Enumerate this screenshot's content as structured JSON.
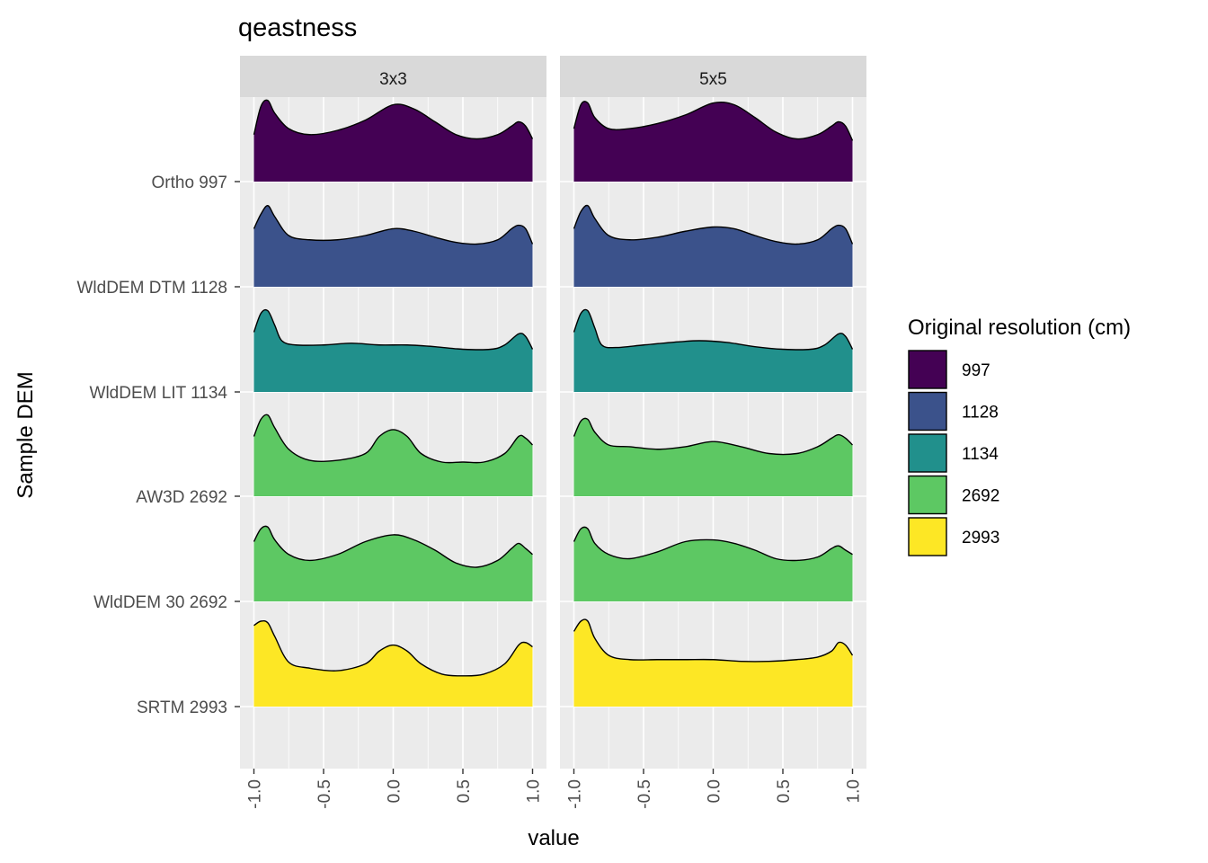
{
  "chart_data": {
    "type": "ridgeline-density",
    "title": "qeastness",
    "xlabel": "value",
    "ylabel": "Sample DEM",
    "xlim": [
      -1.1,
      1.1
    ],
    "x_ticks": [
      "-1.0",
      "-0.5",
      "0.0",
      "0.5",
      "1.0"
    ],
    "x_tick_values": [
      -1.0,
      -0.5,
      0.0,
      0.5,
      1.0
    ],
    "facets": [
      {
        "label": "3x3",
        "ridges": [
          {
            "category": "Ortho 997",
            "group": "997",
            "x": [
              -1.0,
              -0.95,
              -0.9,
              -0.85,
              -0.75,
              -0.6,
              -0.4,
              -0.2,
              0.0,
              0.15,
              0.3,
              0.45,
              0.6,
              0.75,
              0.85,
              0.9,
              0.95,
              1.0
            ],
            "y": [
              0.55,
              0.88,
              0.95,
              0.8,
              0.62,
              0.55,
              0.6,
              0.72,
              0.9,
              0.85,
              0.7,
              0.55,
              0.5,
              0.55,
              0.65,
              0.7,
              0.65,
              0.5
            ]
          },
          {
            "category": "WldDEM DTM 1128",
            "group": "1128",
            "x": [
              -1.0,
              -0.95,
              -0.9,
              -0.85,
              -0.75,
              -0.6,
              -0.4,
              -0.2,
              0.0,
              0.15,
              0.3,
              0.45,
              0.6,
              0.75,
              0.85,
              0.9,
              0.95,
              1.0
            ],
            "y": [
              0.68,
              0.85,
              0.95,
              0.82,
              0.6,
              0.55,
              0.55,
              0.6,
              0.68,
              0.65,
              0.58,
              0.52,
              0.5,
              0.55,
              0.68,
              0.72,
              0.68,
              0.5
            ]
          },
          {
            "category": "WldDEM LIT 1134",
            "group": "1134",
            "x": [
              -1.0,
              -0.95,
              -0.9,
              -0.85,
              -0.8,
              -0.7,
              -0.5,
              -0.3,
              -0.1,
              0.1,
              0.3,
              0.5,
              0.7,
              0.8,
              0.9,
              0.95,
              1.0
            ],
            "y": [
              0.7,
              0.92,
              0.95,
              0.78,
              0.6,
              0.55,
              0.55,
              0.57,
              0.55,
              0.55,
              0.53,
              0.5,
              0.5,
              0.55,
              0.68,
              0.65,
              0.5
            ]
          },
          {
            "category": "AW3D 2692",
            "group": "2692",
            "x": [
              -1.0,
              -0.95,
              -0.9,
              -0.85,
              -0.75,
              -0.6,
              -0.4,
              -0.2,
              -0.1,
              0.0,
              0.1,
              0.2,
              0.35,
              0.5,
              0.65,
              0.8,
              0.9,
              0.95,
              1.0
            ],
            "y": [
              0.7,
              0.9,
              0.95,
              0.8,
              0.55,
              0.42,
              0.42,
              0.5,
              0.7,
              0.78,
              0.7,
              0.5,
              0.4,
              0.4,
              0.4,
              0.5,
              0.7,
              0.68,
              0.6
            ]
          },
          {
            "category": "WldDEM 30 2692",
            "group": "2692",
            "x": [
              -1.0,
              -0.95,
              -0.9,
              -0.85,
              -0.75,
              -0.6,
              -0.4,
              -0.2,
              0.0,
              0.15,
              0.3,
              0.45,
              0.6,
              0.75,
              0.85,
              0.9,
              0.95,
              1.0
            ],
            "y": [
              0.7,
              0.85,
              0.87,
              0.72,
              0.55,
              0.48,
              0.55,
              0.7,
              0.78,
              0.72,
              0.6,
              0.45,
              0.4,
              0.48,
              0.62,
              0.68,
              0.62,
              0.55
            ]
          },
          {
            "category": "SRTM 2993",
            "group": "2993",
            "x": [
              -1.0,
              -0.95,
              -0.9,
              -0.85,
              -0.75,
              -0.6,
              -0.4,
              -0.2,
              -0.1,
              0.0,
              0.1,
              0.2,
              0.35,
              0.5,
              0.65,
              0.8,
              0.9,
              0.95,
              1.0
            ],
            "y": [
              0.95,
              1.0,
              0.98,
              0.82,
              0.52,
              0.45,
              0.42,
              0.5,
              0.65,
              0.72,
              0.65,
              0.5,
              0.38,
              0.36,
              0.38,
              0.5,
              0.72,
              0.75,
              0.7
            ]
          }
        ]
      },
      {
        "label": "5x5",
        "ridges": [
          {
            "category": "Ortho 997",
            "group": "997",
            "x": [
              -1.0,
              -0.95,
              -0.9,
              -0.85,
              -0.75,
              -0.6,
              -0.4,
              -0.2,
              0.0,
              0.15,
              0.3,
              0.45,
              0.6,
              0.75,
              0.85,
              0.9,
              0.95,
              1.0
            ],
            "y": [
              0.62,
              0.9,
              0.92,
              0.75,
              0.62,
              0.62,
              0.68,
              0.78,
              0.92,
              0.9,
              0.75,
              0.58,
              0.5,
              0.55,
              0.65,
              0.7,
              0.65,
              0.48
            ]
          },
          {
            "category": "WldDEM DTM 1128",
            "group": "1128",
            "x": [
              -1.0,
              -0.95,
              -0.9,
              -0.85,
              -0.75,
              -0.6,
              -0.4,
              -0.2,
              0.0,
              0.15,
              0.3,
              0.45,
              0.6,
              0.75,
              0.85,
              0.9,
              0.95,
              1.0
            ],
            "y": [
              0.68,
              0.88,
              0.95,
              0.8,
              0.6,
              0.55,
              0.58,
              0.65,
              0.7,
              0.68,
              0.6,
              0.53,
              0.5,
              0.55,
              0.68,
              0.72,
              0.68,
              0.5
            ]
          },
          {
            "category": "WldDEM LIT 1134",
            "group": "1134",
            "x": [
              -1.0,
              -0.95,
              -0.9,
              -0.85,
              -0.8,
              -0.7,
              -0.5,
              -0.3,
              -0.1,
              0.1,
              0.3,
              0.5,
              0.7,
              0.8,
              0.9,
              0.95,
              1.0
            ],
            "y": [
              0.7,
              0.92,
              0.95,
              0.75,
              0.55,
              0.52,
              0.55,
              0.58,
              0.6,
              0.58,
              0.53,
              0.5,
              0.5,
              0.55,
              0.68,
              0.65,
              0.5
            ]
          },
          {
            "category": "AW3D 2692",
            "group": "2692",
            "x": [
              -1.0,
              -0.95,
              -0.9,
              -0.85,
              -0.75,
              -0.6,
              -0.4,
              -0.2,
              0.0,
              0.2,
              0.4,
              0.6,
              0.75,
              0.85,
              0.9,
              0.95,
              1.0
            ],
            "y": [
              0.7,
              0.88,
              0.9,
              0.75,
              0.6,
              0.58,
              0.55,
              0.58,
              0.64,
              0.58,
              0.5,
              0.5,
              0.58,
              0.68,
              0.72,
              0.68,
              0.6
            ]
          },
          {
            "category": "WldDEM 30 2692",
            "group": "2692",
            "x": [
              -1.0,
              -0.95,
              -0.9,
              -0.85,
              -0.75,
              -0.6,
              -0.4,
              -0.2,
              0.0,
              0.15,
              0.3,
              0.45,
              0.6,
              0.75,
              0.85,
              0.9,
              0.95,
              1.0
            ],
            "y": [
              0.7,
              0.85,
              0.85,
              0.68,
              0.55,
              0.5,
              0.58,
              0.7,
              0.72,
              0.68,
              0.6,
              0.5,
              0.48,
              0.52,
              0.62,
              0.65,
              0.6,
              0.55
            ]
          },
          {
            "category": "SRTM 2993",
            "group": "2993",
            "x": [
              -1.0,
              -0.95,
              -0.9,
              -0.85,
              -0.75,
              -0.6,
              -0.4,
              -0.2,
              0.0,
              0.2,
              0.4,
              0.6,
              0.75,
              0.85,
              0.9,
              0.95,
              1.0
            ],
            "y": [
              0.88,
              1.0,
              1.0,
              0.8,
              0.6,
              0.55,
              0.55,
              0.55,
              0.55,
              0.53,
              0.53,
              0.55,
              0.58,
              0.65,
              0.75,
              0.72,
              0.6
            ]
          }
        ]
      }
    ],
    "categories": [
      "Ortho 997",
      "WldDEM DTM 1128",
      "WldDEM LIT 1134",
      "AW3D 2692",
      "WldDEM 30 2692",
      "SRTM 2993"
    ],
    "legend": {
      "title": "Original resolution (cm)",
      "position": "right",
      "items": [
        {
          "label": "997",
          "color": "#440154"
        },
        {
          "label": "1128",
          "color": "#3B528B"
        },
        {
          "label": "1134",
          "color": "#21908C"
        },
        {
          "label": "2692",
          "color": "#5DC863"
        },
        {
          "label": "2993",
          "color": "#FDE725"
        }
      ]
    },
    "panel_background": "#EBEBEB",
    "strip_background": "#D9D9D9",
    "grid": true
  }
}
